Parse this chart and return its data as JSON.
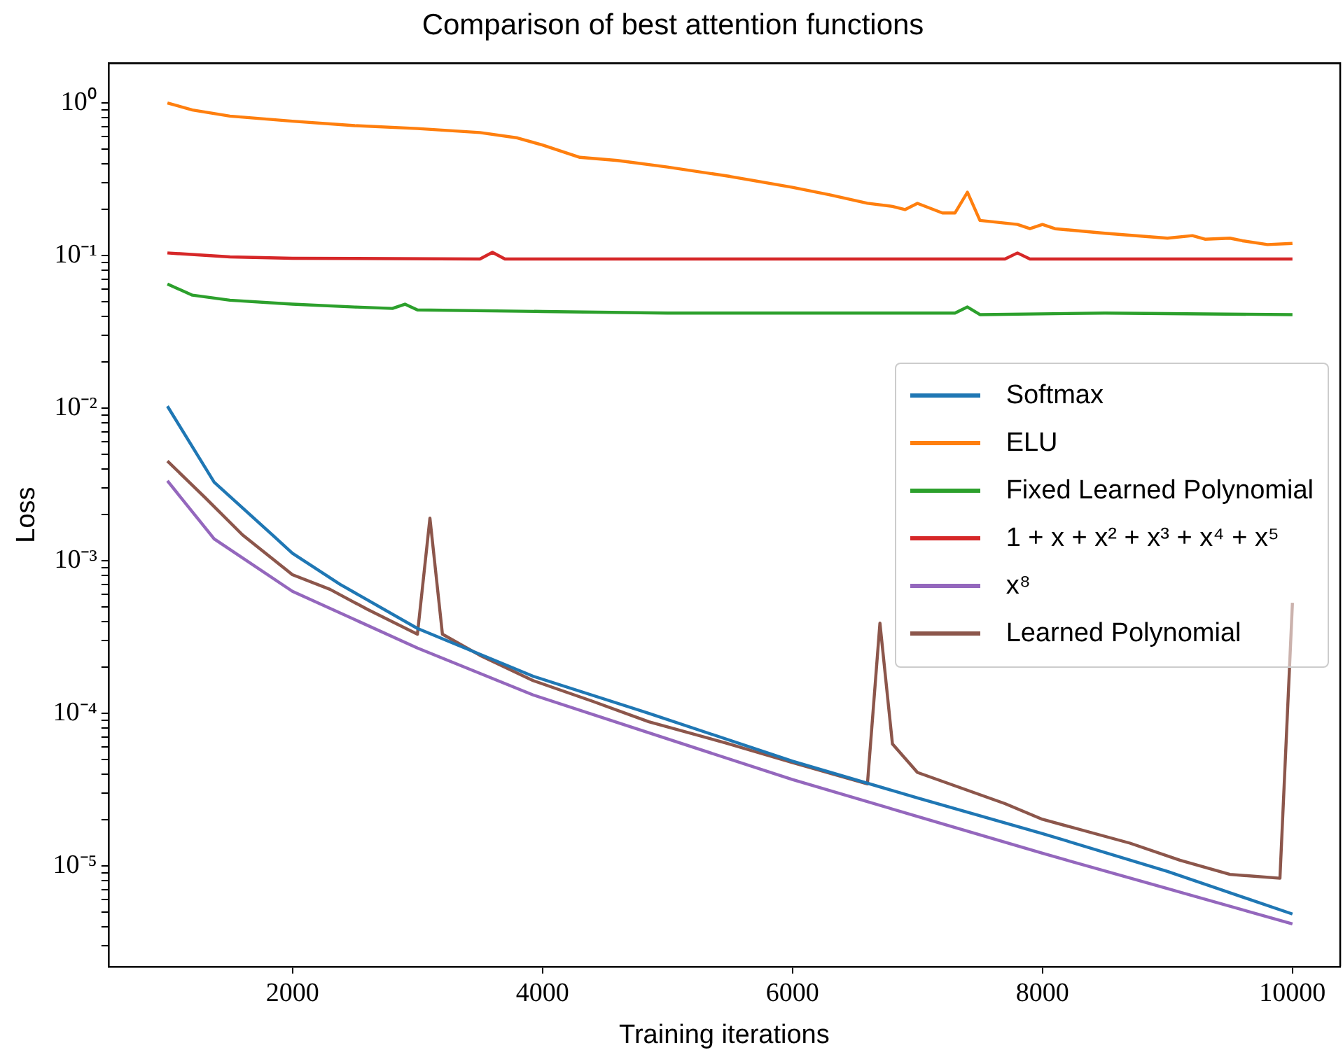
{
  "chart_data": {
    "type": "line",
    "title": "Comparison of best attention functions",
    "xlabel": "Training iterations",
    "ylabel": "Loss",
    "log": "y",
    "grid": false,
    "legend": "right",
    "marker": "none",
    "xlim": [
      528,
      10382
    ],
    "xticks": [
      2000,
      4000,
      6000,
      8000,
      10000
    ],
    "ylim": [
      2.19e-06,
      1.82
    ],
    "yticks": [
      {
        "value": 1,
        "label": "10⁰"
      },
      {
        "value": 0.1,
        "label": "10⁻¹"
      },
      {
        "value": 0.01,
        "label": "10⁻²"
      },
      {
        "value": 0.001,
        "label": "10⁻³"
      },
      {
        "value": 0.0001,
        "label": "10⁻⁴"
      },
      {
        "value": 1e-05,
        "label": "10⁻⁵"
      },
      {
        "value": 3e-06,
        "label": null
      },
      {
        "value": 4e-06,
        "label": null
      },
      {
        "value": 5e-06,
        "label": null
      },
      {
        "value": 6e-06,
        "label": null
      },
      {
        "value": 7e-06,
        "label": null
      },
      {
        "value": 8e-06,
        "label": null
      },
      {
        "value": 9e-06,
        "label": null
      },
      {
        "value": 2e-05,
        "label": null
      },
      {
        "value": 3e-05,
        "label": null
      },
      {
        "value": 4e-05,
        "label": null
      },
      {
        "value": 5e-05,
        "label": null
      },
      {
        "value": 6e-05,
        "label": null
      },
      {
        "value": 7e-05,
        "label": null
      },
      {
        "value": 8e-05,
        "label": null
      },
      {
        "value": 9e-05,
        "label": null
      },
      {
        "value": 0.0002,
        "label": null
      },
      {
        "value": 0.0003,
        "label": null
      },
      {
        "value": 0.0004,
        "label": null
      },
      {
        "value": 0.0005,
        "label": null
      },
      {
        "value": 0.0006,
        "label": null
      },
      {
        "value": 0.0007,
        "label": null
      },
      {
        "value": 0.0008,
        "label": null
      },
      {
        "value": 0.0009,
        "label": null
      },
      {
        "value": 0.002,
        "label": null
      },
      {
        "value": 0.003,
        "label": null
      },
      {
        "value": 0.004,
        "label": null
      },
      {
        "value": 0.005,
        "label": null
      },
      {
        "value": 0.006,
        "label": null
      },
      {
        "value": 0.007,
        "label": null
      },
      {
        "value": 0.008,
        "label": null
      },
      {
        "value": 0.009,
        "label": null
      },
      {
        "value": 0.02,
        "label": null
      },
      {
        "value": 0.03,
        "label": null
      },
      {
        "value": 0.04,
        "label": null
      },
      {
        "value": 0.05,
        "label": null
      },
      {
        "value": 0.06,
        "label": null
      },
      {
        "value": 0.07,
        "label": null
      },
      {
        "value": 0.08,
        "label": null
      },
      {
        "value": 0.09,
        "label": null
      },
      {
        "value": 0.2,
        "label": null
      },
      {
        "value": 0.3,
        "label": null
      },
      {
        "value": 0.4,
        "label": null
      },
      {
        "value": 0.5,
        "label": null
      },
      {
        "value": 0.6,
        "label": null
      },
      {
        "value": 0.7,
        "label": null
      },
      {
        "value": 0.8,
        "label": null
      },
      {
        "value": 0.9,
        "label": null
      }
    ],
    "series": [
      {
        "name": "Softmax",
        "color": "#1f77b4",
        "x": [
          1000,
          1374,
          1838,
          2000,
          2382,
          3000,
          3925,
          4852,
          6000,
          7000,
          8000,
          9000,
          10000
        ],
        "values": [
          0.0103,
          0.00327,
          0.00148,
          0.00112,
          0.0007,
          0.00036,
          0.000175,
          0.0001,
          4.86e-05,
          2.79e-05,
          1.63e-05,
          9.2e-06,
          4.84e-06
        ]
      },
      {
        "name": "ELU",
        "color": "#ff7f0e",
        "x": [
          1000,
          1200,
          1500,
          2000,
          2500,
          3000,
          3500,
          3800,
          4000,
          4300,
          4600,
          5000,
          5500,
          6000,
          6300,
          6600,
          6800,
          6900,
          7000,
          7200,
          7300,
          7400,
          7500,
          7800,
          7900,
          8000,
          8100,
          8500,
          9000,
          9200,
          9300,
          9500,
          9600,
          9800,
          10000
        ],
        "values": [
          1.0,
          0.9,
          0.82,
          0.76,
          0.71,
          0.68,
          0.64,
          0.59,
          0.53,
          0.44,
          0.42,
          0.38,
          0.33,
          0.28,
          0.25,
          0.22,
          0.21,
          0.2,
          0.22,
          0.19,
          0.19,
          0.26,
          0.17,
          0.16,
          0.15,
          0.16,
          0.15,
          0.14,
          0.13,
          0.135,
          0.128,
          0.13,
          0.125,
          0.118,
          0.12
        ]
      },
      {
        "name": "Fixed Learned Polynomial",
        "color": "#2ca02c",
        "x": [
          1000,
          1200,
          1500,
          2000,
          2500,
          2800,
          2900,
          3000,
          4000,
          5000,
          6000,
          7300,
          7400,
          7500,
          8500,
          10000
        ],
        "values": [
          0.065,
          0.055,
          0.051,
          0.048,
          0.046,
          0.045,
          0.048,
          0.044,
          0.043,
          0.042,
          0.042,
          0.042,
          0.046,
          0.041,
          0.042,
          0.041
        ]
      },
      {
        "name": "1 + x + x² + x³ + x⁴ + x⁵",
        "color": "#d62728",
        "x": [
          1000,
          1500,
          2000,
          3500,
          3600,
          3700,
          7700,
          7800,
          7900,
          10000
        ],
        "values": [
          0.104,
          0.098,
          0.096,
          0.095,
          0.105,
          0.095,
          0.095,
          0.104,
          0.095,
          0.095
        ]
      },
      {
        "name": "x⁸",
        "color": "#9467bd",
        "x": [
          1000,
          1374,
          2000,
          3000,
          3925,
          4852,
          6000,
          7000,
          8000,
          9000,
          10000
        ],
        "values": [
          0.00334,
          0.00139,
          0.00063,
          0.000268,
          0.000132,
          7.45e-05,
          3.68e-05,
          2.11e-05,
          1.21e-05,
          7.1e-06,
          4.17e-06
        ]
      },
      {
        "name": "Learned Polynomial",
        "color": "#8c564b",
        "x": [
          1000,
          1300,
          1600,
          2000,
          2300,
          2600,
          3000,
          3100,
          3200,
          3500,
          3925,
          4400,
          4852,
          5466,
          6000,
          6600,
          6700,
          6800,
          7000,
          7700,
          8000,
          8700,
          9100,
          9500,
          9900,
          10000
        ],
        "values": [
          0.0045,
          0.0026,
          0.00148,
          0.00081,
          0.00065,
          0.00048,
          0.00033,
          0.0019,
          0.00033,
          0.00024,
          0.000164,
          0.00012,
          8.8e-05,
          6.4e-05,
          4.75e-05,
          3.45e-05,
          0.00039,
          6.3e-05,
          4.1e-05,
          2.56e-05,
          2.02e-05,
          1.41e-05,
          1.09e-05,
          8.8e-06,
          8.3e-06,
          0.00053
        ]
      }
    ]
  }
}
